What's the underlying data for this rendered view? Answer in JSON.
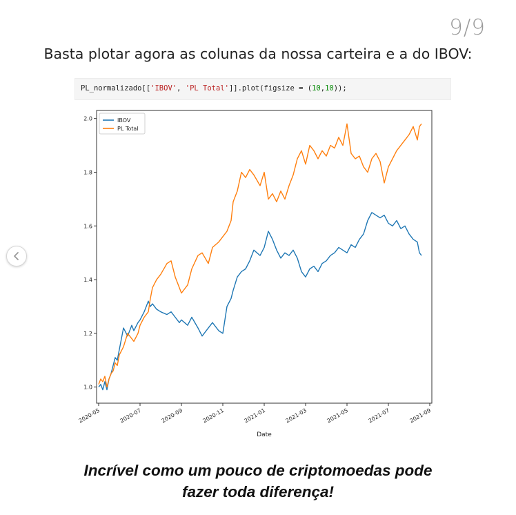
{
  "page_counter": "9/9",
  "intro_text": "Basta plotar agora as colunas da nossa carteira e a do IBOV:",
  "code": {
    "prefix": "PL_normalizado[[",
    "arg1": "'IBOV'",
    "sep": ", ",
    "arg2": "'PL Total'",
    "mid": "]].plot(figsize = (",
    "n1": "10",
    "comma": ",",
    "n2": "10",
    "suffix": "));"
  },
  "closing_line1": "Incrível como um pouco de criptomoedas pode",
  "closing_line2": "fazer toda diferença!",
  "chart_data": {
    "type": "line",
    "xlabel": "Date",
    "x_ticks": [
      "2020-05",
      "2020-07",
      "2020-09",
      "2020-11",
      "2021-01",
      "2021-03",
      "2021-05",
      "2021-07",
      "2021-09"
    ],
    "y_ticks": [
      "1.0",
      "1.2",
      "1.4",
      "1.6",
      "1.8",
      "2.0"
    ],
    "xlim": [
      -0.1,
      16.1
    ],
    "ylim": [
      0.94,
      2.03
    ],
    "legend": "top-left",
    "grid": false,
    "series": [
      {
        "name": "IBOV",
        "color": "#1f77b4",
        "x": [
          0,
          0.1,
          0.2,
          0.3,
          0.4,
          0.5,
          0.6,
          0.7,
          0.8,
          0.9,
          1.0,
          1.2,
          1.4,
          1.6,
          1.7,
          1.9,
          2.0,
          2.2,
          2.4,
          2.5,
          2.6,
          2.8,
          3.0,
          3.3,
          3.5,
          3.7,
          3.9,
          4.0,
          4.3,
          4.5,
          4.8,
          5.0,
          5.3,
          5.5,
          5.8,
          6.0,
          6.2,
          6.4,
          6.5,
          6.7,
          6.9,
          7.1,
          7.3,
          7.5,
          7.8,
          8.0,
          8.2,
          8.4,
          8.6,
          8.8,
          9.0,
          9.2,
          9.4,
          9.6,
          9.8,
          10.0,
          10.2,
          10.4,
          10.6,
          10.8,
          11.0,
          11.2,
          11.4,
          11.6,
          11.8,
          12.0,
          12.2,
          12.4,
          12.6,
          12.8,
          13.0,
          13.2,
          13.4,
          13.6,
          13.8,
          14.0,
          14.2,
          14.4,
          14.6,
          14.8,
          15.0,
          15.2,
          15.4,
          15.5,
          15.6
        ],
        "values": [
          1.0,
          1.01,
          0.99,
          1.02,
          0.99,
          1.03,
          1.05,
          1.08,
          1.11,
          1.1,
          1.14,
          1.22,
          1.19,
          1.23,
          1.21,
          1.24,
          1.25,
          1.28,
          1.32,
          1.3,
          1.31,
          1.29,
          1.28,
          1.27,
          1.28,
          1.26,
          1.24,
          1.25,
          1.23,
          1.26,
          1.22,
          1.19,
          1.22,
          1.24,
          1.21,
          1.2,
          1.3,
          1.33,
          1.36,
          1.41,
          1.43,
          1.44,
          1.47,
          1.51,
          1.49,
          1.52,
          1.58,
          1.55,
          1.51,
          1.48,
          1.5,
          1.49,
          1.51,
          1.48,
          1.43,
          1.41,
          1.44,
          1.45,
          1.43,
          1.46,
          1.47,
          1.49,
          1.5,
          1.52,
          1.51,
          1.5,
          1.53,
          1.52,
          1.55,
          1.57,
          1.62,
          1.65,
          1.64,
          1.63,
          1.64,
          1.61,
          1.6,
          1.62,
          1.59,
          1.6,
          1.57,
          1.55,
          1.54,
          1.5,
          1.49
        ]
      },
      {
        "name": "PL Total",
        "color": "#ff7f0e",
        "x": [
          0,
          0.1,
          0.2,
          0.3,
          0.4,
          0.5,
          0.6,
          0.7,
          0.8,
          0.9,
          1.0,
          1.2,
          1.4,
          1.6,
          1.7,
          1.9,
          2.0,
          2.2,
          2.4,
          2.5,
          2.6,
          2.8,
          3.0,
          3.3,
          3.5,
          3.7,
          3.9,
          4.0,
          4.3,
          4.5,
          4.8,
          5.0,
          5.3,
          5.5,
          5.8,
          6.0,
          6.2,
          6.4,
          6.5,
          6.7,
          6.9,
          7.1,
          7.3,
          7.5,
          7.8,
          8.0,
          8.2,
          8.4,
          8.6,
          8.8,
          9.0,
          9.2,
          9.4,
          9.6,
          9.8,
          10.0,
          10.2,
          10.4,
          10.6,
          10.8,
          11.0,
          11.2,
          11.4,
          11.6,
          11.8,
          12.0,
          12.2,
          12.4,
          12.6,
          12.8,
          13.0,
          13.2,
          13.4,
          13.6,
          13.8,
          14.0,
          14.2,
          14.4,
          14.6,
          14.8,
          15.0,
          15.2,
          15.4,
          15.5,
          15.6
        ],
        "values": [
          1.01,
          1.03,
          1.02,
          1.04,
          1.0,
          1.03,
          1.05,
          1.06,
          1.09,
          1.08,
          1.12,
          1.15,
          1.2,
          1.18,
          1.17,
          1.2,
          1.23,
          1.26,
          1.28,
          1.33,
          1.37,
          1.4,
          1.42,
          1.46,
          1.47,
          1.41,
          1.37,
          1.35,
          1.38,
          1.44,
          1.49,
          1.5,
          1.46,
          1.52,
          1.54,
          1.56,
          1.58,
          1.62,
          1.69,
          1.73,
          1.8,
          1.78,
          1.81,
          1.79,
          1.75,
          1.8,
          1.7,
          1.72,
          1.69,
          1.73,
          1.7,
          1.75,
          1.79,
          1.85,
          1.88,
          1.83,
          1.9,
          1.88,
          1.85,
          1.88,
          1.86,
          1.9,
          1.89,
          1.93,
          1.9,
          1.98,
          1.87,
          1.85,
          1.86,
          1.82,
          1.8,
          1.85,
          1.87,
          1.84,
          1.76,
          1.82,
          1.85,
          1.88,
          1.9,
          1.92,
          1.94,
          1.97,
          1.92,
          1.97,
          1.98
        ]
      }
    ]
  }
}
